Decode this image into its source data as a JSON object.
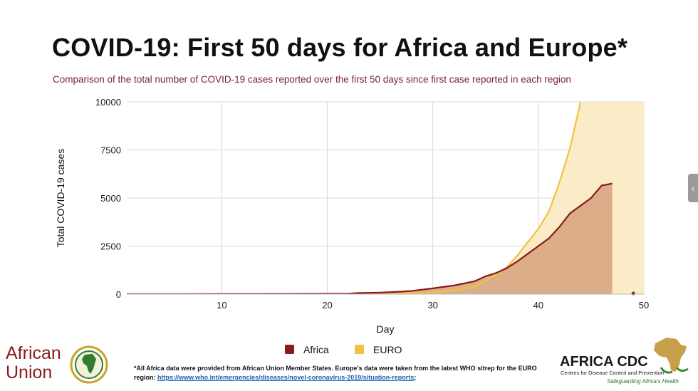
{
  "header": {
    "title": "COVID-19: First 50 days for Africa and Europe*",
    "subtitle": "Comparison of the total number of COVID-19 cases reported over the first 50 days since first case reported in each region"
  },
  "colors": {
    "africa": "#8b1a1a",
    "euro": "#f0c342",
    "africa_fill": "#d9aa86",
    "euro_fill": "#fbebc6",
    "subtitle": "#7a2330",
    "grid": "#d9d9d9"
  },
  "chart_data": {
    "type": "area",
    "title": "COVID-19: First 50 days for Africa and Europe*",
    "xlabel": "Day",
    "ylabel": "Total COVID-19 cases",
    "xlim": [
      1,
      50
    ],
    "ylim": [
      0,
      10000
    ],
    "x_ticks": [
      10,
      20,
      30,
      40,
      50
    ],
    "y_ticks": [
      0,
      2500,
      5000,
      7500,
      10000
    ],
    "legend_position": "bottom",
    "series": [
      {
        "name": "Africa",
        "color": "#8b1a1a",
        "x": [
          1,
          5,
          10,
          15,
          20,
          22,
          23,
          25,
          27,
          28,
          30,
          32,
          33,
          34,
          35,
          36,
          37,
          38,
          39,
          40,
          41,
          42,
          43,
          44,
          45,
          46,
          47
        ],
        "values": [
          1,
          2,
          5,
          10,
          20,
          25,
          60,
          80,
          130,
          170,
          300,
          450,
          560,
          680,
          930,
          1100,
          1350,
          1700,
          2100,
          2500,
          2900,
          3500,
          4200,
          4600,
          5000,
          5650,
          5750
        ]
      },
      {
        "name": "EURO",
        "color": "#f0c342",
        "x": [
          1,
          5,
          10,
          15,
          20,
          22,
          25,
          28,
          30,
          32,
          34,
          35,
          36,
          37,
          38,
          39,
          40,
          41,
          42,
          43,
          44
        ],
        "values": [
          1,
          2,
          5,
          10,
          15,
          20,
          30,
          50,
          100,
          200,
          400,
          700,
          1000,
          1400,
          2000,
          2700,
          3400,
          4300,
          5800,
          7600,
          10000
        ]
      }
    ],
    "legend": [
      "Africa",
      "EURO"
    ]
  },
  "footer": {
    "au_logo_line1": "African",
    "au_logo_line2": "Union",
    "footnote_text": "*All Africa data were provided from African Union Member States.  Europe’s data were taken from the latest WHO sitrep for the EURO region: ",
    "footnote_link": "https://www.who.int/emergencies/diseases/novel-coronavirus-2019/situation-reports",
    "footnote_end": ";",
    "acdc_name": "AFRICA CDC",
    "acdc_sub": "Centres for Disease Control and Prevention",
    "acdc_tag": "Safeguarding Africa’s Health"
  }
}
